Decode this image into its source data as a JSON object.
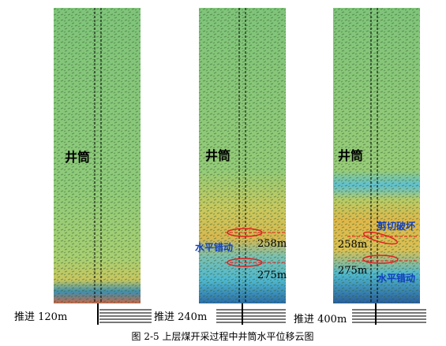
{
  "panels": [
    {
      "shaft_label": "井筒",
      "advance": "推进 120m"
    },
    {
      "shaft_label": "井筒",
      "advance": "推进 240m",
      "upper_note": "水平错动",
      "depth_upper": "258m",
      "depth_lower": "275m"
    },
    {
      "shaft_label": "井筒",
      "advance": "推进 400m",
      "upper_note": "剪切破坏",
      "depth_upper": "258m",
      "depth_lower": "275m",
      "lower_note": "水平错动"
    }
  ],
  "caption": "图 2-5 上层煤开采过程中井筒水平位移云图"
}
